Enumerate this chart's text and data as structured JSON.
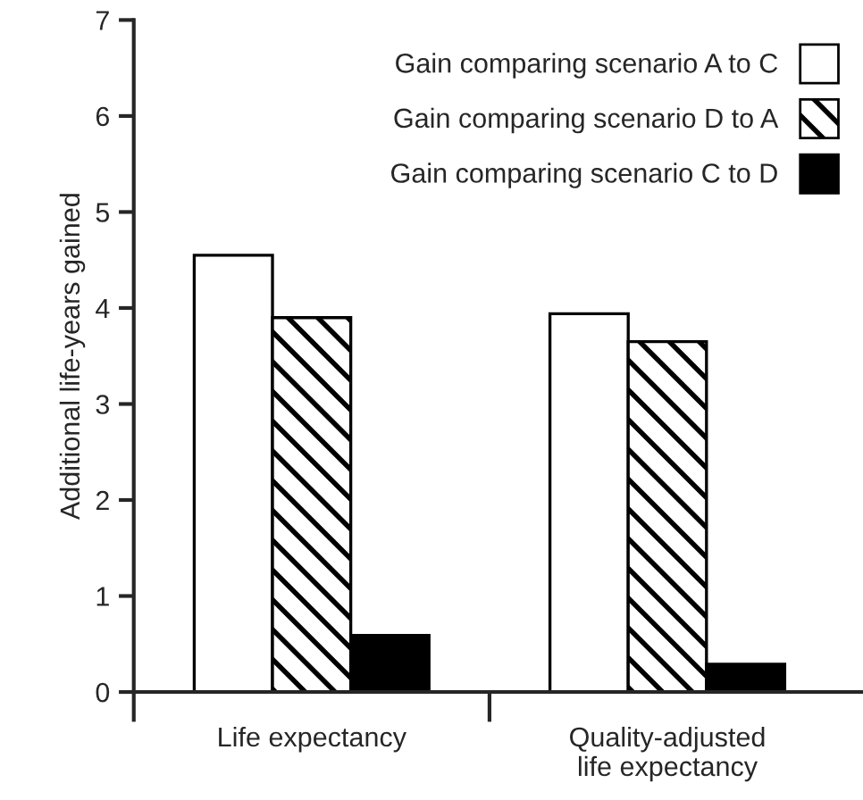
{
  "chart_data": {
    "type": "bar",
    "ylabel": "Additional life-years gained",
    "categories": [
      "Life expectancy",
      "Quality-adjusted\nlife expectancy"
    ],
    "series": [
      {
        "name": "Gain comparing scenario A to C",
        "color": "#ffffff",
        "values": [
          4.55,
          3.94
        ]
      },
      {
        "name": "Gain comparing scenario D to A",
        "color": "#000000",
        "values": [
          3.9,
          3.65
        ]
      },
      {
        "name": "Gain comparing scenario C to D",
        "color": "#000000",
        "values": [
          0.59,
          0.29
        ]
      }
    ],
    "ylim": [
      0,
      7
    ],
    "yticks": [
      0,
      1,
      2,
      3,
      4,
      5,
      6,
      7
    ],
    "grid": false,
    "legend": "top right"
  }
}
